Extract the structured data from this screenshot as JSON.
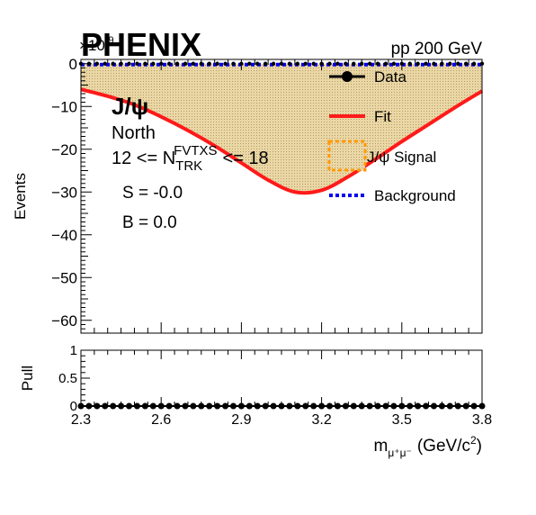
{
  "header": {
    "experiment": "PHENIX",
    "system": "pp 200 GeV",
    "exponent": "×10",
    "exponent_power": "-9"
  },
  "annotations": {
    "particle": "J/ψ",
    "arm": "North",
    "mult_prefix": "12 <= N",
    "mult_sub": "TRK",
    "mult_sup": "FVTXS",
    "mult_suffix": "<= 18",
    "signal": "S = -0.0",
    "background": "B = 0.0"
  },
  "legend": {
    "data": "Data",
    "fit": "Fit",
    "signal": "J/ψ Signal",
    "background": "Background"
  },
  "colors": {
    "fit": "#ff1a1a",
    "background": "#0000ee",
    "signal_fill": "#e8d6a8",
    "signal_border": "#ff9900"
  },
  "chart_data": [
    {
      "type": "line",
      "panel": "main",
      "xlabel": "",
      "ylabel": "Events",
      "xlim": [
        2.3,
        3.8
      ],
      "ylim": [
        -63,
        1
      ],
      "y_scale_factor": "1e-9",
      "yticks": [
        0,
        -10,
        -20,
        -30,
        -40,
        -50,
        -60
      ],
      "ytick_labels": [
        "0",
        "−10",
        "−20",
        "−30",
        "−40",
        "−50",
        "−60"
      ],
      "series": [
        {
          "name": "Fit",
          "x": [
            2.3,
            2.4,
            2.5,
            2.6,
            2.7,
            2.8,
            2.9,
            3.0,
            3.1,
            3.2,
            3.3,
            3.4,
            3.5,
            3.6,
            3.7,
            3.8
          ],
          "values": [
            -6.0,
            -7.6,
            -9.6,
            -12.4,
            -15.6,
            -19.2,
            -23.2,
            -27.2,
            -30.0,
            -29.6,
            -26.4,
            -22.4,
            -18.2,
            -14.2,
            -10.2,
            -6.4
          ]
        },
        {
          "name": "J/ψ Signal",
          "x": [
            2.3,
            2.4,
            2.5,
            2.6,
            2.7,
            2.8,
            2.9,
            3.0,
            3.1,
            3.2,
            3.3,
            3.4,
            3.5,
            3.6,
            3.7,
            3.8
          ],
          "values": [
            -6.0,
            -7.6,
            -9.6,
            -12.4,
            -15.6,
            -19.2,
            -23.2,
            -27.2,
            -30.0,
            -29.6,
            -26.4,
            -22.4,
            -18.2,
            -14.2,
            -10.2,
            -6.4
          ]
        },
        {
          "name": "Background",
          "x": [
            2.3,
            3.8
          ],
          "values": [
            0,
            0
          ]
        },
        {
          "name": "Data",
          "x": [
            2.3,
            2.33,
            2.36,
            2.39,
            2.42,
            2.45,
            2.48,
            2.51,
            2.54,
            2.57,
            2.6,
            2.63,
            2.66,
            2.69,
            2.72,
            2.75,
            2.78,
            2.81,
            2.84,
            2.87,
            2.9,
            2.93,
            2.96,
            2.99,
            3.02,
            3.05,
            3.08,
            3.11,
            3.14,
            3.17,
            3.2,
            3.23,
            3.26,
            3.29,
            3.32,
            3.35,
            3.38,
            3.41,
            3.44,
            3.47,
            3.5,
            3.53,
            3.56,
            3.59,
            3.62,
            3.65,
            3.68,
            3.71,
            3.74,
            3.77,
            3.8
          ],
          "values": [
            0,
            0,
            0,
            0,
            0,
            0,
            0,
            0,
            0,
            0,
            0,
            0,
            0,
            0,
            0,
            0,
            0,
            0,
            0,
            0,
            0,
            0,
            0,
            0,
            0,
            0,
            0,
            0,
            0,
            0,
            0,
            0,
            0,
            0,
            0,
            0,
            0,
            0,
            0,
            0,
            0,
            0,
            0,
            0,
            0,
            0,
            0,
            0,
            0,
            0,
            0
          ]
        }
      ]
    },
    {
      "type": "scatter",
      "panel": "pull",
      "xlabel": "m",
      "xlabel_sub": "μ⁺μ⁻",
      "xlabel_unit": "(GeV/c",
      "xlabel_unit_sup": "2",
      "xlabel_unit_end": ")",
      "ylabel": "Pull",
      "xlim": [
        2.3,
        3.8
      ],
      "ylim": [
        0,
        1
      ],
      "xticks": [
        2.3,
        2.6,
        2.9,
        3.2,
        3.5,
        3.8
      ],
      "xtick_labels": [
        "2.3",
        "2.6",
        "2.9",
        "3.2",
        "3.5",
        "3.8"
      ],
      "yticks": [
        0,
        0.5,
        1
      ],
      "ytick_labels": [
        "0",
        "0.5",
        "1"
      ],
      "series": [
        {
          "name": "Pull",
          "x": [
            2.3,
            2.33,
            2.36,
            2.39,
            2.42,
            2.45,
            2.48,
            2.51,
            2.54,
            2.57,
            2.6,
            2.63,
            2.66,
            2.69,
            2.72,
            2.75,
            2.78,
            2.81,
            2.84,
            2.87,
            2.9,
            2.93,
            2.96,
            2.99,
            3.02,
            3.05,
            3.08,
            3.11,
            3.14,
            3.17,
            3.2,
            3.23,
            3.26,
            3.29,
            3.32,
            3.35,
            3.38,
            3.41,
            3.44,
            3.47,
            3.5,
            3.53,
            3.56,
            3.59,
            3.62,
            3.65,
            3.68,
            3.71,
            3.74,
            3.77,
            3.8
          ],
          "values": [
            0,
            0,
            0,
            0,
            0,
            0,
            0,
            0,
            0,
            0,
            0,
            0,
            0,
            0,
            0,
            0,
            0,
            0,
            0,
            0,
            0,
            0,
            0,
            0,
            0,
            0,
            0,
            0,
            0,
            0,
            0,
            0,
            0,
            0,
            0,
            0,
            0,
            0,
            0,
            0,
            0,
            0,
            0,
            0,
            0,
            0,
            0,
            0,
            0,
            0,
            0
          ]
        }
      ]
    }
  ]
}
